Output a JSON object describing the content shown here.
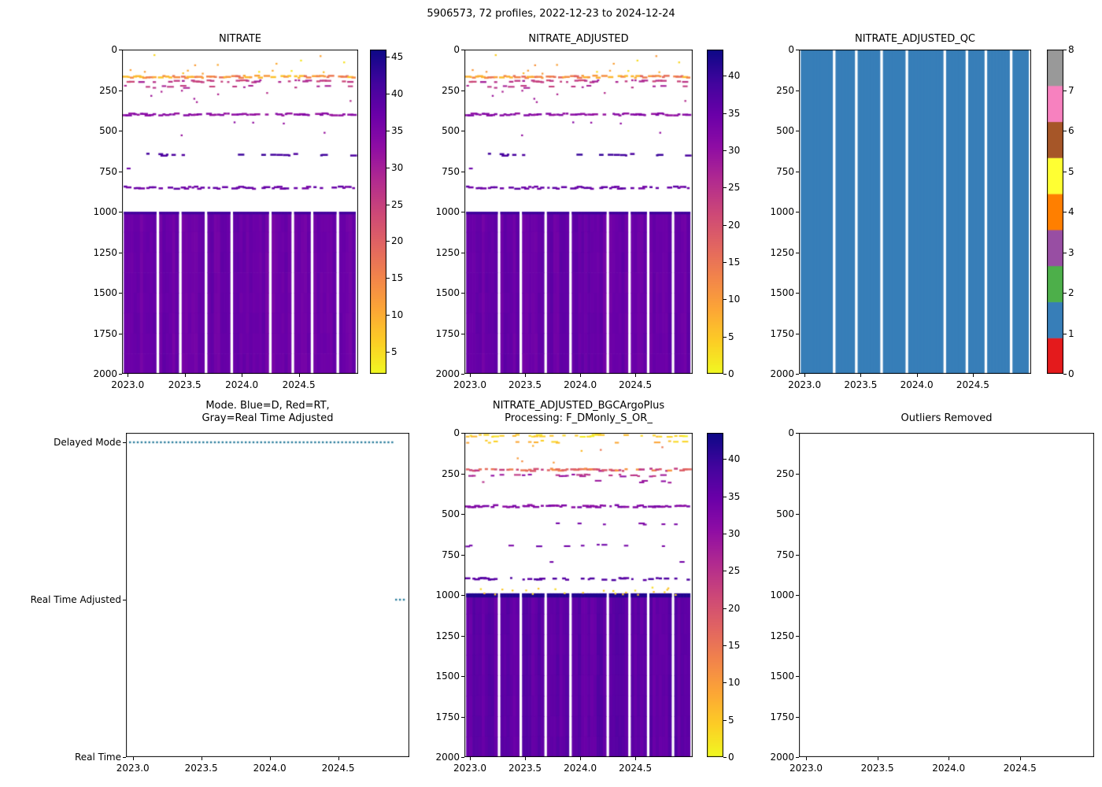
{
  "figure_title": "5906573, 72 profiles, 2022-12-23 to 2024-12-24",
  "palette": {
    "plasma_stops": [
      [
        0,
        "#0d0887"
      ],
      [
        0.1,
        "#41049d"
      ],
      [
        0.2,
        "#6a00a8"
      ],
      [
        0.3,
        "#8f0da4"
      ],
      [
        0.4,
        "#b12a90"
      ],
      [
        0.5,
        "#cc4778"
      ],
      [
        0.6,
        "#e16462"
      ],
      [
        0.7,
        "#f2844b"
      ],
      [
        0.8,
        "#fca636"
      ],
      [
        0.9,
        "#fcce25"
      ],
      [
        1,
        "#f0f921"
      ]
    ],
    "qc_colors": [
      "#e41a1c",
      "#377eb8",
      "#4daf4a",
      "#984ea3",
      "#ff7f00",
      "#ffff33",
      "#a65628",
      "#f781bf",
      "#999999"
    ],
    "mode_marker": "#2d7f9e",
    "axis_color": "#000000"
  },
  "chart_data": [
    {
      "id": "nitrate",
      "type": "heatmap",
      "title": "NITRATE",
      "xlim": [
        2022.95,
        2025.02
      ],
      "ylim": [
        2000,
        0
      ],
      "x_ticks": [
        {
          "v": 2023.0,
          "label": "2023.0"
        },
        {
          "v": 2023.5,
          "label": "2023.5"
        },
        {
          "v": 2024.0,
          "label": "2024.0"
        },
        {
          "v": 2024.5,
          "label": "2024.5"
        }
      ],
      "y_ticks": [
        {
          "v": 0,
          "label": "0"
        },
        {
          "v": 250,
          "label": "250"
        },
        {
          "v": 500,
          "label": "500"
        },
        {
          "v": 750,
          "label": "750"
        },
        {
          "v": 1000,
          "label": "1000"
        },
        {
          "v": 1250,
          "label": "1250"
        },
        {
          "v": 1500,
          "label": "1500"
        },
        {
          "v": 1750,
          "label": "1750"
        },
        {
          "v": 2000,
          "label": "2000"
        }
      ],
      "colorbar": {
        "vmin": 2,
        "vmax": 46,
        "ticks": [
          {
            "v": 5,
            "label": "5"
          },
          {
            "v": 10,
            "label": "10"
          },
          {
            "v": 15,
            "label": "15"
          },
          {
            "v": 20,
            "label": "20"
          },
          {
            "v": 25,
            "label": "25"
          },
          {
            "v": 30,
            "label": "30"
          },
          {
            "v": 35,
            "label": "35"
          },
          {
            "v": 40,
            "label": "40"
          },
          {
            "v": 45,
            "label": "45"
          }
        ]
      },
      "profiles": {
        "count": 72,
        "x_start": 2022.98,
        "x_end": 2024.98,
        "gap_indices": [
          10,
          17,
          25,
          33,
          45,
          52,
          58,
          66
        ]
      },
      "deep_block": {
        "top": 1000,
        "bottom": 2000,
        "value": 37,
        "jitter": 1.1,
        "cap_value": 41.5,
        "cap_thickness": 16
      },
      "streak_rows": [
        {
          "depth": 168,
          "thickness": 12,
          "prob": 0.9,
          "value": 13,
          "jitter": 6
        },
        {
          "depth": 196,
          "thickness": 11,
          "prob": 0.5,
          "value": 26,
          "jitter": 4
        },
        {
          "depth": 230,
          "thickness": 10,
          "prob": 0.18,
          "value": 27,
          "jitter": 3
        },
        {
          "depth": 400,
          "thickness": 12,
          "prob": 0.92,
          "value": 33,
          "jitter": 1.5
        },
        {
          "depth": 648,
          "thickness": 12,
          "prob": 0.3,
          "value": 41,
          "jitter": 1.5
        },
        {
          "depth": 735,
          "thickness": 10,
          "prob": 0.08,
          "value": 36,
          "jitter": 1
        },
        {
          "depth": 852,
          "thickness": 12,
          "prob": 0.72,
          "value": 37,
          "jitter": 1.5
        }
      ],
      "dot_fields": [
        {
          "dmin": 30,
          "dmax": 150,
          "prob": 0.22,
          "vmin": 2,
          "vmax": 12
        },
        {
          "dmin": 240,
          "dmax": 340,
          "prob": 0.1,
          "vmin": 27,
          "vmax": 31
        },
        {
          "dmin": 430,
          "dmax": 560,
          "prob": 0.06,
          "vmin": 31,
          "vmax": 34
        }
      ],
      "seed": 11
    },
    {
      "id": "nitrate_adjusted",
      "type": "heatmap",
      "title": "NITRATE_ADJUSTED",
      "xlim": [
        2022.95,
        2025.02
      ],
      "ylim": [
        2000,
        0
      ],
      "x_ticks": [
        {
          "v": 2023.0,
          "label": "2023.0"
        },
        {
          "v": 2023.5,
          "label": "2023.5"
        },
        {
          "v": 2024.0,
          "label": "2024.0"
        },
        {
          "v": 2024.5,
          "label": "2024.5"
        }
      ],
      "y_ticks": [
        {
          "v": 0,
          "label": "0"
        },
        {
          "v": 250,
          "label": "250"
        },
        {
          "v": 500,
          "label": "500"
        },
        {
          "v": 750,
          "label": "750"
        },
        {
          "v": 1000,
          "label": "1000"
        },
        {
          "v": 1250,
          "label": "1250"
        },
        {
          "v": 1500,
          "label": "1500"
        },
        {
          "v": 1750,
          "label": "1750"
        },
        {
          "v": 2000,
          "label": "2000"
        }
      ],
      "colorbar": {
        "vmin": 0,
        "vmax": 43.5,
        "ticks": [
          {
            "v": 0,
            "label": "0"
          },
          {
            "v": 5,
            "label": "5"
          },
          {
            "v": 10,
            "label": "10"
          },
          {
            "v": 15,
            "label": "15"
          },
          {
            "v": 20,
            "label": "20"
          },
          {
            "v": 25,
            "label": "25"
          },
          {
            "v": 30,
            "label": "30"
          },
          {
            "v": 35,
            "label": "35"
          },
          {
            "v": 40,
            "label": "40"
          }
        ]
      },
      "profiles": {
        "count": 72,
        "x_start": 2022.98,
        "x_end": 2024.98,
        "gap_indices": [
          10,
          17,
          25,
          33,
          45,
          52,
          58,
          66
        ]
      },
      "deep_block": {
        "top": 1000,
        "bottom": 2000,
        "value": 35,
        "jitter": 1.1,
        "cap_value": 39.5,
        "cap_thickness": 16
      },
      "streak_rows": [
        {
          "depth": 168,
          "thickness": 12,
          "prob": 0.9,
          "value": 12,
          "jitter": 6
        },
        {
          "depth": 196,
          "thickness": 11,
          "prob": 0.5,
          "value": 24,
          "jitter": 4
        },
        {
          "depth": 230,
          "thickness": 10,
          "prob": 0.18,
          "value": 25,
          "jitter": 3
        },
        {
          "depth": 400,
          "thickness": 12,
          "prob": 0.92,
          "value": 31,
          "jitter": 1.5
        },
        {
          "depth": 648,
          "thickness": 12,
          "prob": 0.3,
          "value": 39,
          "jitter": 1.5
        },
        {
          "depth": 735,
          "thickness": 10,
          "prob": 0.08,
          "value": 34,
          "jitter": 1
        },
        {
          "depth": 852,
          "thickness": 12,
          "prob": 0.72,
          "value": 35,
          "jitter": 1.5
        }
      ],
      "dot_fields": [
        {
          "dmin": 30,
          "dmax": 150,
          "prob": 0.22,
          "vmin": 1,
          "vmax": 11
        },
        {
          "dmin": 240,
          "dmax": 340,
          "prob": 0.1,
          "vmin": 25,
          "vmax": 29
        },
        {
          "dmin": 430,
          "dmax": 560,
          "prob": 0.06,
          "vmin": 29,
          "vmax": 32
        }
      ],
      "seed": 11
    },
    {
      "id": "nitrate_adjusted_qc",
      "type": "qc_heatmap",
      "title": "NITRATE_ADJUSTED_QC",
      "xlim": [
        2022.95,
        2025.02
      ],
      "ylim": [
        2000,
        0
      ],
      "x_ticks": [
        {
          "v": 2023.0,
          "label": "2023.0"
        },
        {
          "v": 2023.5,
          "label": "2023.5"
        },
        {
          "v": 2024.0,
          "label": "2024.0"
        },
        {
          "v": 2024.5,
          "label": "2024.5"
        }
      ],
      "y_ticks": [
        {
          "v": 0,
          "label": "0"
        },
        {
          "v": 250,
          "label": "250"
        },
        {
          "v": 500,
          "label": "500"
        },
        {
          "v": 750,
          "label": "750"
        },
        {
          "v": 1000,
          "label": "1000"
        },
        {
          "v": 1250,
          "label": "1250"
        },
        {
          "v": 1500,
          "label": "1500"
        },
        {
          "v": 1750,
          "label": "1750"
        },
        {
          "v": 2000,
          "label": "2000"
        }
      ],
      "fill_qc": 1,
      "colorbar": {
        "vmin": 0,
        "vmax": 8,
        "ticks": [
          {
            "v": 0,
            "label": "0"
          },
          {
            "v": 1,
            "label": "1"
          },
          {
            "v": 2,
            "label": "2"
          },
          {
            "v": 3,
            "label": "3"
          },
          {
            "v": 4,
            "label": "4"
          },
          {
            "v": 5,
            "label": "5"
          },
          {
            "v": 6,
            "label": "6"
          },
          {
            "v": 7,
            "label": "7"
          },
          {
            "v": 8,
            "label": "8"
          }
        ]
      },
      "profiles": {
        "count": 72,
        "x_start": 2022.98,
        "x_end": 2024.98,
        "gap_indices": [
          10,
          17,
          25,
          33,
          45,
          52,
          58,
          66
        ]
      },
      "seed": 11
    },
    {
      "id": "mode",
      "type": "event_plot",
      "title": "Mode. Blue=D, Red=RT,\nGray=Real Time Adjusted",
      "xlim": [
        2022.95,
        2025.02
      ],
      "ylim": [
        0,
        2.06
      ],
      "x_ticks": [
        {
          "v": 2023.0,
          "label": "2023.0"
        },
        {
          "v": 2023.5,
          "label": "2023.5"
        },
        {
          "v": 2024.0,
          "label": "2024.0"
        },
        {
          "v": 2024.5,
          "label": "2024.5"
        }
      ],
      "categories": [
        {
          "v": 2,
          "label": "Delayed Mode"
        },
        {
          "v": 1,
          "label": "Real Time Adjusted"
        },
        {
          "v": 0,
          "label": "Real Time"
        }
      ],
      "profiles": {
        "count": 72,
        "x_start": 2022.98,
        "x_end": 2024.98
      },
      "delayed_index_range": [
        0,
        68
      ],
      "rta_indices": [
        69,
        70,
        71
      ],
      "seed": 3
    },
    {
      "id": "nitrate_adjusted_bgcargoplus",
      "type": "heatmap",
      "title": "NITRATE_ADJUSTED_BGCArgoPlus\nProcessing: F_DMonly_S_OR_",
      "xlim": [
        2022.95,
        2025.02
      ],
      "ylim": [
        2000,
        0
      ],
      "x_ticks": [
        {
          "v": 2023.0,
          "label": "2023.0"
        },
        {
          "v": 2023.5,
          "label": "2023.5"
        },
        {
          "v": 2024.0,
          "label": "2024.0"
        },
        {
          "v": 2024.5,
          "label": "2024.5"
        }
      ],
      "y_ticks": [
        {
          "v": 0,
          "label": "0"
        },
        {
          "v": 250,
          "label": "250"
        },
        {
          "v": 500,
          "label": "500"
        },
        {
          "v": 750,
          "label": "750"
        },
        {
          "v": 1000,
          "label": "1000"
        },
        {
          "v": 1250,
          "label": "1250"
        },
        {
          "v": 1500,
          "label": "1500"
        },
        {
          "v": 1750,
          "label": "1750"
        },
        {
          "v": 2000,
          "label": "2000"
        }
      ],
      "colorbar": {
        "vmin": 0,
        "vmax": 43.5,
        "ticks": [
          {
            "v": 0,
            "label": "0"
          },
          {
            "v": 5,
            "label": "5"
          },
          {
            "v": 10,
            "label": "10"
          },
          {
            "v": 15,
            "label": "15"
          },
          {
            "v": 20,
            "label": "20"
          },
          {
            "v": 25,
            "label": "25"
          },
          {
            "v": 30,
            "label": "30"
          },
          {
            "v": 35,
            "label": "35"
          },
          {
            "v": 40,
            "label": "40"
          }
        ]
      },
      "profiles": {
        "count": 72,
        "x_start": 2022.98,
        "x_end": 2024.98,
        "gap_indices": [
          10,
          17,
          25,
          33,
          45,
          52,
          58,
          66
        ]
      },
      "deep_block": {
        "top": 990,
        "bottom": 2000,
        "value": 36,
        "jitter": 1.2,
        "cap_value": 42,
        "cap_thickness": 25
      },
      "streak_rows": [
        {
          "depth": 18,
          "thickness": 10,
          "prob": 0.5,
          "value": 4,
          "jitter": 3
        },
        {
          "depth": 55,
          "thickness": 10,
          "prob": 0.2,
          "value": 6,
          "jitter": 3
        },
        {
          "depth": 228,
          "thickness": 12,
          "prob": 0.85,
          "value": 18,
          "jitter": 8
        },
        {
          "depth": 262,
          "thickness": 10,
          "prob": 0.35,
          "value": 27,
          "jitter": 4
        },
        {
          "depth": 300,
          "thickness": 10,
          "prob": 0.15,
          "value": 28,
          "jitter": 3
        },
        {
          "depth": 452,
          "thickness": 12,
          "prob": 0.88,
          "value": 32,
          "jitter": 1.5
        },
        {
          "depth": 560,
          "thickness": 10,
          "prob": 0.08,
          "value": 33,
          "jitter": 1
        },
        {
          "depth": 695,
          "thickness": 10,
          "prob": 0.18,
          "value": 34,
          "jitter": 1.5
        },
        {
          "depth": 790,
          "thickness": 10,
          "prob": 0.08,
          "value": 34,
          "jitter": 1
        },
        {
          "depth": 902,
          "thickness": 12,
          "prob": 0.5,
          "value": 37,
          "jitter": 1.5
        }
      ],
      "dot_fields": [
        {
          "dmin": 80,
          "dmax": 200,
          "prob": 0.1,
          "vmin": 4,
          "vmax": 15
        },
        {
          "dmin": 950,
          "dmax": 1000,
          "prob": 0.35,
          "vmin": 2,
          "vmax": 6
        }
      ],
      "seed": 29
    },
    {
      "id": "outliers_removed",
      "type": "empty",
      "title": "Outliers Removed",
      "xlim": [
        2022.95,
        2025.02
      ],
      "ylim": [
        2000,
        0
      ],
      "x_ticks": [
        {
          "v": 2023.0,
          "label": "2023.0"
        },
        {
          "v": 2023.5,
          "label": "2023.5"
        },
        {
          "v": 2024.0,
          "label": "2024.0"
        },
        {
          "v": 2024.5,
          "label": "2024.5"
        }
      ],
      "y_ticks": [
        {
          "v": 0,
          "label": "0"
        },
        {
          "v": 250,
          "label": "250"
        },
        {
          "v": 500,
          "label": "500"
        },
        {
          "v": 750,
          "label": "750"
        },
        {
          "v": 1000,
          "label": "1000"
        },
        {
          "v": 1250,
          "label": "1250"
        },
        {
          "v": 1500,
          "label": "1500"
        },
        {
          "v": 1750,
          "label": "1750"
        },
        {
          "v": 2000,
          "label": "2000"
        }
      ]
    }
  ]
}
